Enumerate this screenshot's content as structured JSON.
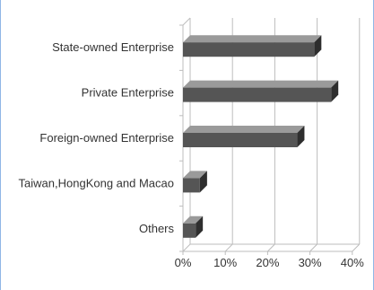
{
  "chart_data": {
    "type": "bar",
    "orientation": "horizontal",
    "style": "3d",
    "categories": [
      "State-owned Enterprise",
      "Private Enterprise",
      "Foreign-owned Enterprise",
      "Taiwan,HongKong and Macao",
      "Others"
    ],
    "values": [
      31,
      35,
      27,
      4,
      3
    ],
    "unit": "%",
    "xlim": [
      0,
      40
    ],
    "xticks": [
      "0%",
      "10%",
      "20%",
      "30%",
      "40%"
    ],
    "grid": true,
    "legend": "none",
    "title": "",
    "xlabel": "",
    "ylabel": "",
    "colors": {
      "bar_front": "#555555",
      "bar_top": "#9a9a9a",
      "bar_side": "#2e2e2e",
      "grid": "#bdbdbd",
      "frame": "#8fb6e6"
    }
  }
}
